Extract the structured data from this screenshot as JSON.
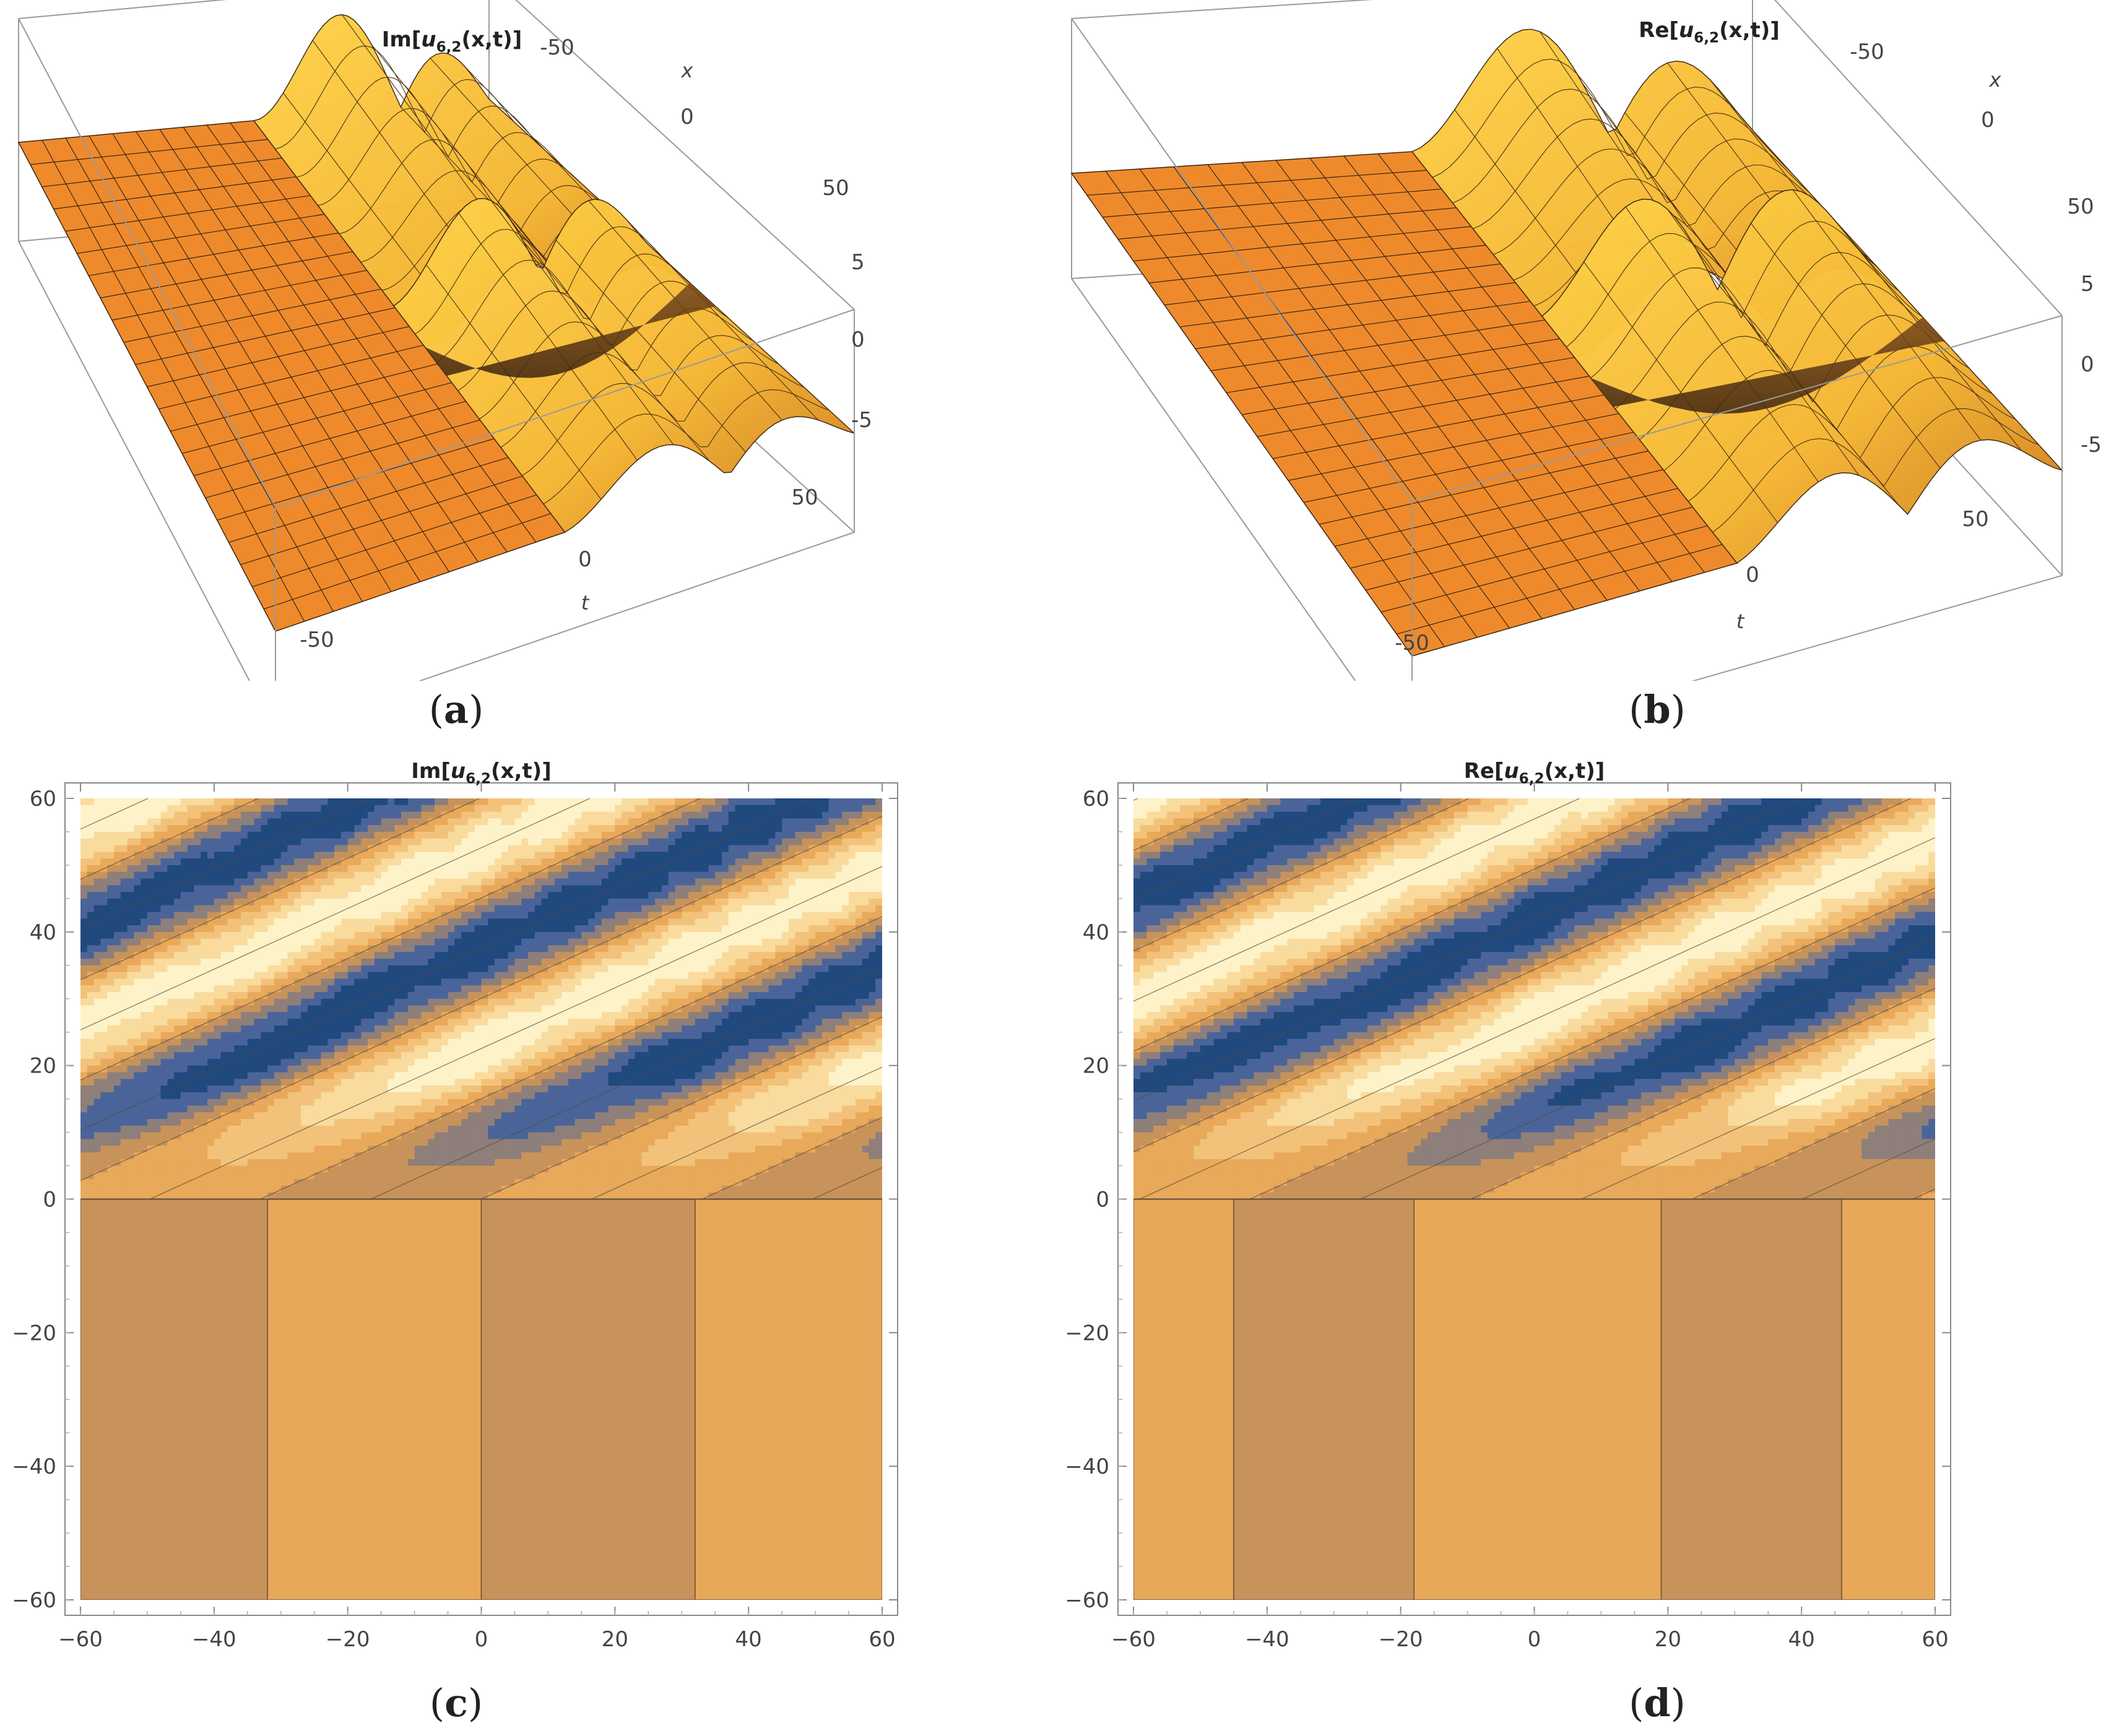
{
  "captions": [
    "(a)",
    "(b)",
    "(c)",
    "(d)"
  ],
  "caption_letters": [
    "a",
    "b",
    "c",
    "d"
  ],
  "chart_data": [
    {
      "id": "a",
      "type": "surface3d",
      "title": "Im[u6,2(x,t)]",
      "title_parts": {
        "prefix": "Im[",
        "var": "u",
        "sub": "6,2",
        "suffix": "(x,t)]"
      },
      "axes": {
        "x": {
          "label": "x",
          "ticks": [
            "-50",
            "0",
            "50"
          ],
          "range": [
            -60,
            60
          ]
        },
        "t": {
          "label": "t",
          "ticks": [
            "-50",
            "0",
            "50"
          ],
          "range": [
            -60,
            60
          ]
        },
        "z": {
          "ticks": [
            "5",
            "0",
            "-5"
          ],
          "range": [
            -7,
            7
          ]
        }
      },
      "surface_color": "#E8912F"
    },
    {
      "id": "b",
      "type": "surface3d",
      "title": "Re[u6,2(x,t)]",
      "title_parts": {
        "prefix": "Re[",
        "var": "u",
        "sub": "6,2",
        "suffix": "(x,t)]"
      },
      "axes": {
        "x": {
          "label": "x",
          "ticks": [
            "-50",
            "0",
            "50"
          ],
          "range": [
            -60,
            60
          ]
        },
        "t": {
          "label": "t",
          "ticks": [
            "-50",
            "0",
            "50"
          ],
          "range": [
            -60,
            60
          ]
        },
        "z": {
          "ticks": [
            "5",
            "0",
            "-5"
          ],
          "range": [
            -7,
            7
          ]
        }
      },
      "surface_color": "#E8912F"
    },
    {
      "id": "c",
      "type": "contour",
      "title": "Im[u6,2(x,t)]",
      "title_parts": {
        "prefix": "Im[",
        "var": "u",
        "sub": "6,2",
        "suffix": "(x,t)]"
      },
      "xlim": [
        -60,
        60
      ],
      "ylim": [
        -60,
        60
      ],
      "xticks": [
        "-60",
        "-40",
        "-20",
        "0",
        "20",
        "40",
        "60"
      ],
      "yticks": [
        "60",
        "40",
        "20",
        "0",
        "-20",
        "-40",
        "-60"
      ],
      "lower_stripe_boundaries": [
        -32,
        0,
        32
      ],
      "lower_stripe_colors": [
        "#C8935A",
        "#E8A85A",
        "#C8935A",
        "#E8A85A"
      ]
    },
    {
      "id": "d",
      "type": "contour",
      "title": "Re[u6,2(x,t)]",
      "title_parts": {
        "prefix": "Re[",
        "var": "u",
        "sub": "6,2",
        "suffix": "(x,t)]"
      },
      "xlim": [
        -60,
        60
      ],
      "ylim": [
        -60,
        60
      ],
      "xticks": [
        "-60",
        "-40",
        "-20",
        "0",
        "20",
        "40",
        "60"
      ],
      "yticks": [
        "60",
        "40",
        "20",
        "0",
        "-20",
        "-40",
        "-60"
      ],
      "lower_stripe_boundaries": [
        -45,
        -18,
        19,
        46
      ],
      "lower_stripe_colors": [
        "#E8A85A",
        "#C8935A",
        "#E8A85A",
        "#C8935A",
        "#E8A85A"
      ]
    }
  ],
  "contour_palette": [
    "#20497D",
    "#4A6499",
    "#8E7F7A",
    "#C8935A",
    "#E9A95A",
    "#F3C27A",
    "#F9DB9E",
    "#FEF2C8"
  ]
}
